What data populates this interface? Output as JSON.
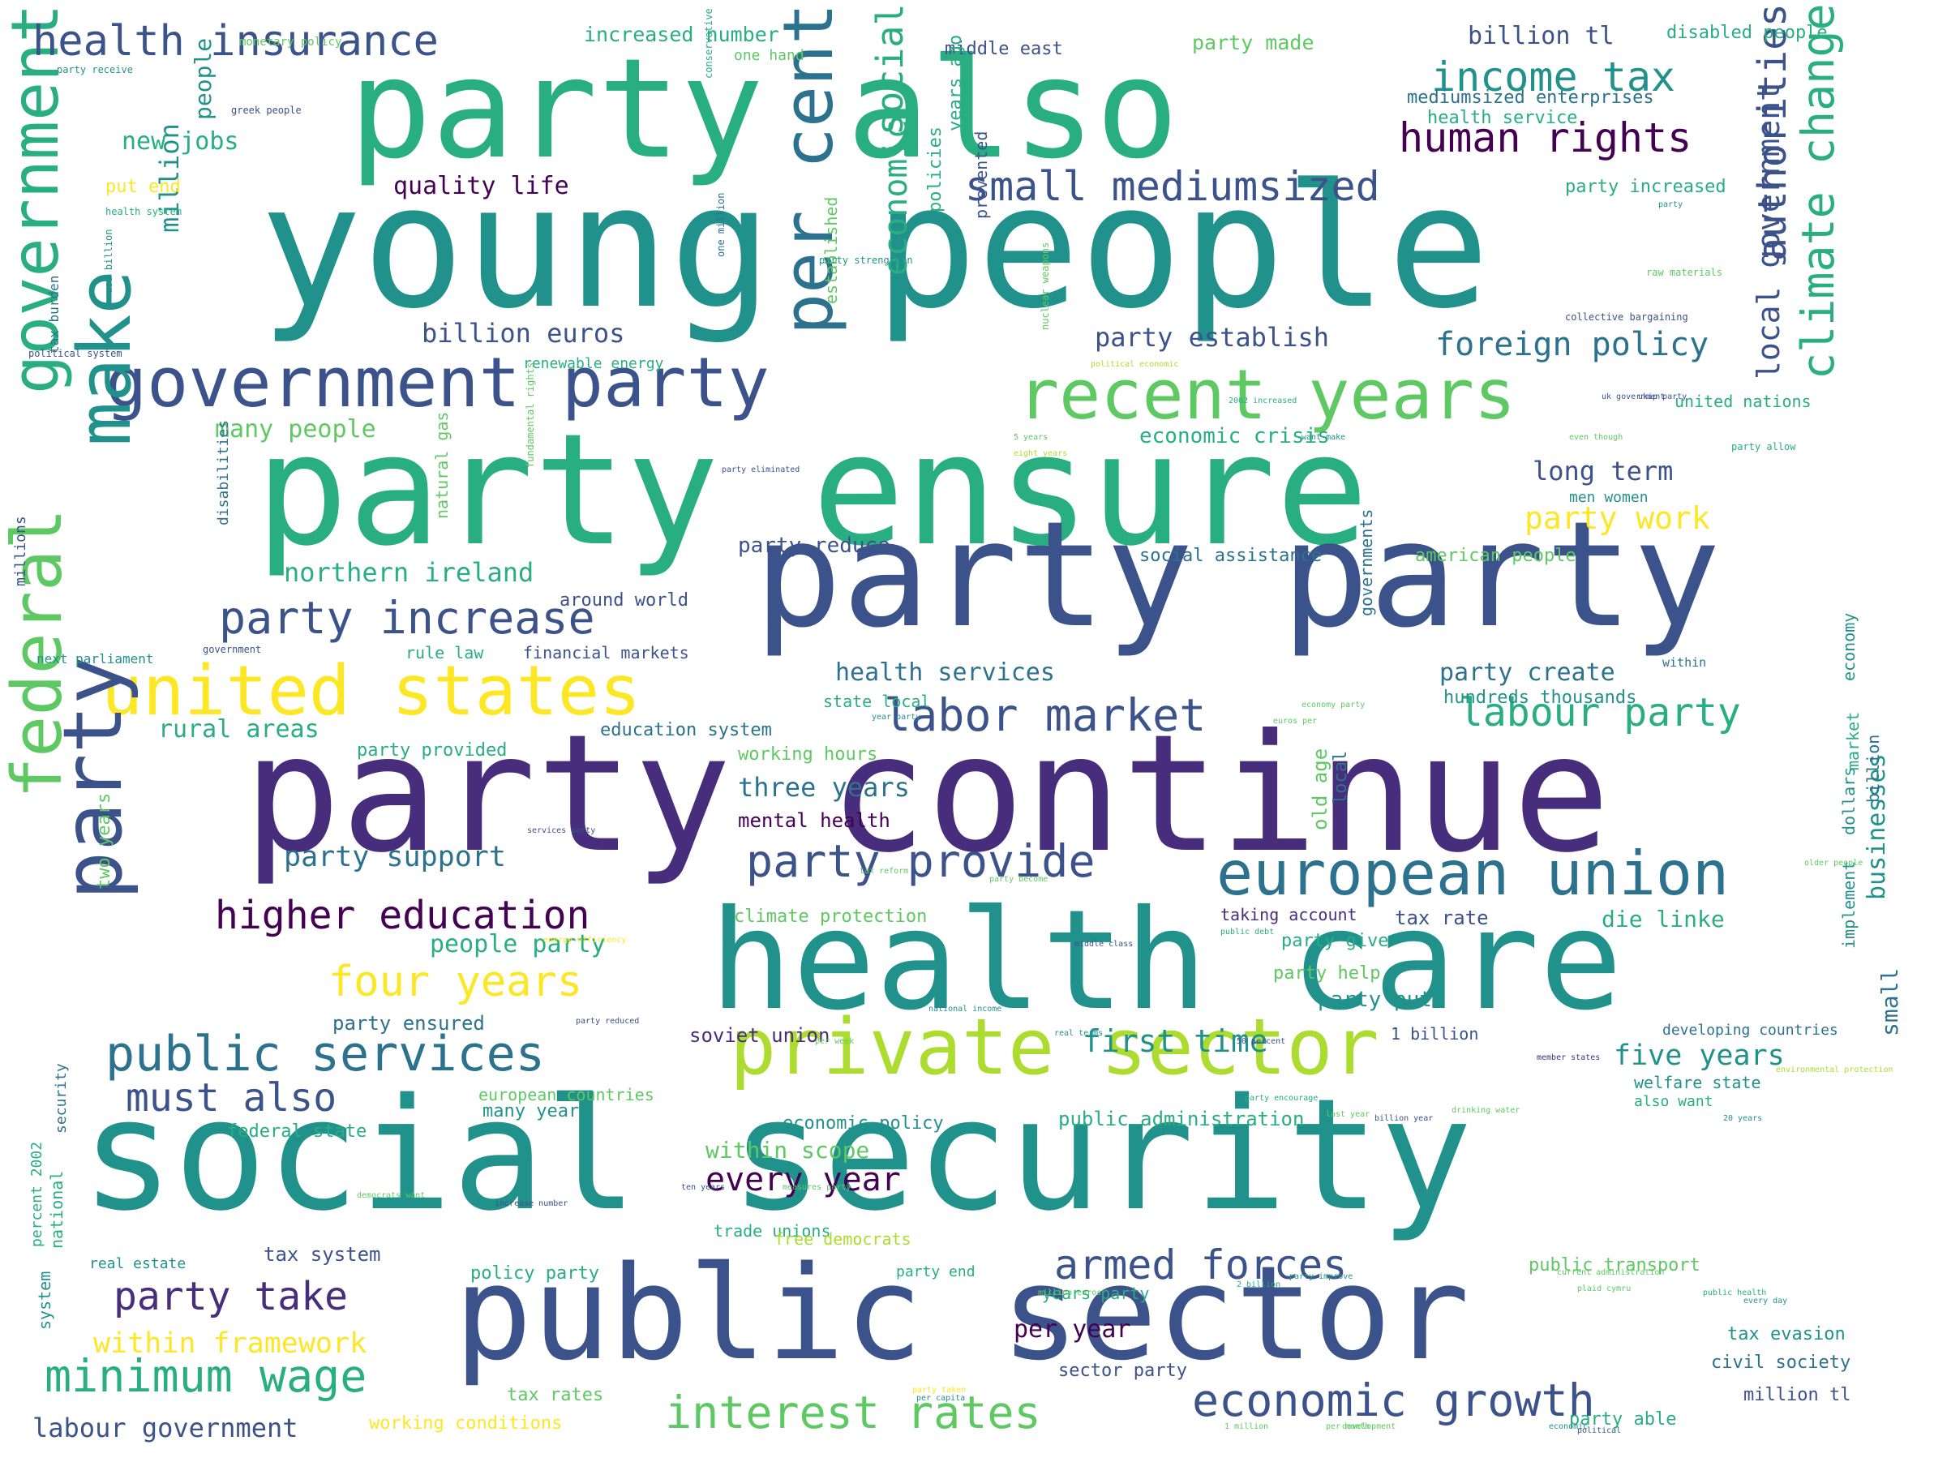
{
  "palette": {
    "dark_purple": "#440154",
    "purple": "#472d7b",
    "indigo": "#3b528b",
    "blue": "#2c728e",
    "teal": "#21918c",
    "green_teal": "#28ae80",
    "green": "#5ec962",
    "lime": "#addc30",
    "yellow": "#fde725"
  },
  "words": [
    "party also",
    "young people",
    "party ensure",
    "party continue",
    "party party",
    "health care",
    "social security",
    "public sector",
    "private sector",
    "government party",
    "recent years",
    "per cent",
    "united states",
    "federal",
    "party",
    "make",
    "government",
    "european union",
    "labor market",
    "party provide",
    "public services",
    "health insurance",
    "small mediumsized",
    "human rights",
    "income tax",
    "foreign policy",
    "climate change",
    "authorities",
    "local government",
    "social",
    "economic",
    "party increase",
    "labour party",
    "higher education",
    "four years",
    "must also",
    "minimum wage",
    "interest rates",
    "economic growth",
    "armed forces",
    "party take",
    "within framework",
    "labour government",
    "northern ireland",
    "party support",
    "billion euros",
    "party establish",
    "rural areas",
    "people party",
    "every year",
    "first time",
    "five years",
    "three years",
    "health services",
    "quality life",
    "new jobs",
    "many people",
    "million",
    "people",
    "billion tl",
    "party made",
    "increased number",
    "middle east",
    "disabled people",
    "mediumsized enterprises",
    "health service",
    "party increased",
    "economic crisis",
    "long term",
    "party work",
    "party reduce",
    "social assistance",
    "american people",
    "around world",
    "rule law",
    "financial markets",
    "party create",
    "hundreds thousands",
    "state local",
    "education system",
    "working hours",
    "mental health",
    "climate protection",
    "die linke",
    "tax rate",
    "taking account",
    "party give",
    "party help",
    "party put",
    "soviet union",
    "1 billion",
    "developing countries",
    "party ensured",
    "welfare state",
    "also want",
    "economic policy",
    "public administration",
    "within scope",
    "trade unions",
    "free democrats",
    "tax system",
    "policy party",
    "party end",
    "years party",
    "public transport",
    "per year",
    "tax evasion",
    "civil society",
    "sector party",
    "tax rates",
    "working conditions",
    "million tl",
    "party able",
    "businesses",
    "small",
    "implement",
    "years ago",
    "policies",
    "prevented",
    "established",
    "two years",
    "old age",
    "local",
    "governments",
    "economy",
    "dollars",
    "billion",
    "market",
    "party provided",
    "federal state",
    "many years",
    "european countries",
    "within",
    "security",
    "national",
    "system",
    "percent 2002",
    "real estate",
    "united nations",
    "renewable energy",
    "put end",
    "one hand",
    "men women",
    "natural gas",
    "disabilities",
    "millions",
    "tax burden",
    "monetary policy",
    "party receive",
    "greek people",
    "health system",
    "usd billion",
    "political system",
    "next parliament",
    "government",
    "conservative",
    "one million",
    "party strengthen",
    "raw materials",
    "nuclear weapons",
    "collective bargaining",
    "political economic",
    "2002 increased",
    "uk government",
    "want make",
    "even though",
    "ukip party",
    "5 years",
    "eight years",
    "party eliminated",
    "fundamental rights",
    "party allow",
    "economy party",
    "euros per",
    "public debt",
    "middle class",
    "party become",
    "real terms",
    "50 percent",
    "party encourage",
    "environmental protection",
    "20 years",
    "drinking water",
    "national income",
    "last year",
    "billion year",
    "tax reform",
    "services party",
    "energy efficiency",
    "democrats want",
    "member states",
    "year party",
    "party reduced",
    "per week",
    "current administration",
    "million euros",
    "ten years",
    "measures party",
    "increase number",
    "older people",
    "plaid cymru",
    "every day",
    "public health",
    "party improve",
    "2 billion",
    "party taken",
    "per capita",
    "per month",
    "1 million",
    "development",
    "economic",
    "political",
    "party"
  ]
}
